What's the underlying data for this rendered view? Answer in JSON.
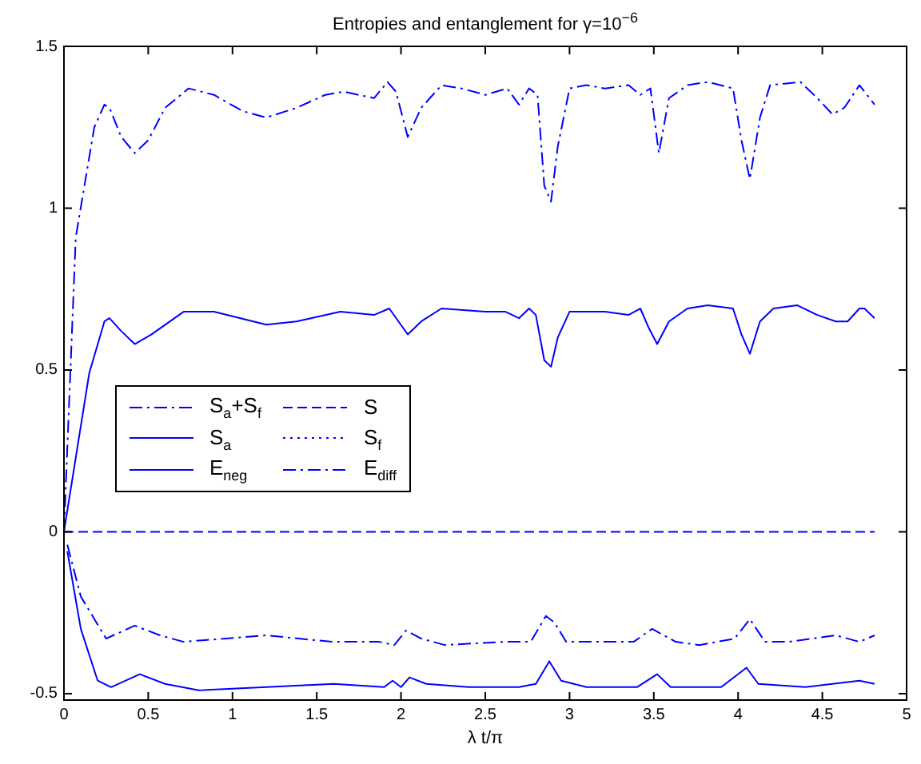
{
  "chart_data": {
    "type": "line",
    "title": "Entropies and entanglement for γ=10$^{−6}$",
    "xlabel": "λ t/π",
    "xlim": [
      0,
      5
    ],
    "xticks": [
      0,
      0.5,
      1,
      1.5,
      2,
      2.5,
      3,
      3.5,
      4,
      4.5,
      5
    ],
    "ylim": [
      -0.52,
      1.5
    ],
    "yticks": [
      -0.5,
      0,
      0.5,
      1,
      1.5
    ],
    "grid": false,
    "legend": "left",
    "marker": "none",
    "series": [
      {
        "name": "S$_{a}$+S$_{f}$",
        "color": "#0000ff",
        "line_style": "dashdot",
        "x": [
          0,
          0.07,
          0.18,
          0.24,
          0.27,
          0.34,
          0.42,
          0.5,
          0.6,
          0.74,
          0.89,
          1.06,
          1.2,
          1.38,
          1.55,
          1.66,
          1.84,
          1.92,
          1.97,
          2.04,
          2.12,
          2.24,
          2.36,
          2.5,
          2.63,
          2.7,
          2.76,
          2.81,
          2.85,
          2.89,
          2.93,
          3.0,
          3.1,
          3.21,
          3.35,
          3.42,
          3.48,
          3.53,
          3.59,
          3.7,
          3.82,
          3.97,
          4.02,
          4.07,
          4.13,
          4.19,
          4.37,
          4.47,
          4.56,
          4.63,
          4.72,
          4.81
        ],
        "values": [
          0,
          0.91,
          1.25,
          1.32,
          1.31,
          1.22,
          1.17,
          1.21,
          1.31,
          1.37,
          1.35,
          1.3,
          1.28,
          1.31,
          1.35,
          1.36,
          1.34,
          1.39,
          1.36,
          1.22,
          1.31,
          1.38,
          1.37,
          1.35,
          1.37,
          1.32,
          1.37,
          1.35,
          1.07,
          1.02,
          1.19,
          1.37,
          1.38,
          1.37,
          1.38,
          1.35,
          1.37,
          1.17,
          1.34,
          1.38,
          1.39,
          1.37,
          1.21,
          1.09,
          1.28,
          1.38,
          1.39,
          1.34,
          1.29,
          1.31,
          1.38,
          1.32
        ]
      },
      {
        "name": "S",
        "color": "#0000ff",
        "line_style": "dashed",
        "x": [
          0,
          4.81
        ],
        "values": [
          0,
          0
        ]
      },
      {
        "name": "S$_{a}$",
        "color": "#0000ff",
        "line_style": "solid",
        "x": [
          0,
          0.15,
          0.24,
          0.27,
          0.34,
          0.42,
          0.52,
          0.71,
          0.89,
          1.2,
          1.38,
          1.64,
          1.84,
          1.93,
          2.04,
          2.12,
          2.24,
          2.5,
          2.62,
          2.7,
          2.76,
          2.8,
          2.85,
          2.89,
          2.93,
          3.0,
          3.21,
          3.35,
          3.42,
          3.47,
          3.52,
          3.59,
          3.7,
          3.82,
          3.97,
          4.02,
          4.07,
          4.13,
          4.21,
          4.35,
          4.47,
          4.58,
          4.65,
          4.72,
          4.75,
          4.81
        ],
        "values": [
          0,
          0.49,
          0.65,
          0.66,
          0.62,
          0.58,
          0.61,
          0.68,
          0.68,
          0.64,
          0.65,
          0.68,
          0.67,
          0.69,
          0.61,
          0.65,
          0.69,
          0.68,
          0.68,
          0.66,
          0.69,
          0.67,
          0.53,
          0.51,
          0.6,
          0.68,
          0.68,
          0.67,
          0.69,
          0.63,
          0.58,
          0.65,
          0.69,
          0.7,
          0.69,
          0.61,
          0.55,
          0.65,
          0.69,
          0.7,
          0.67,
          0.65,
          0.65,
          0.69,
          0.69,
          0.66
        ]
      },
      {
        "name": "S$_{f}$",
        "color": "#0000ff",
        "line_style": "dotted"
      },
      {
        "name": "E$_{neg}$",
        "color": "#0000ff",
        "line_style": "solid",
        "x": [
          0.02,
          0.1,
          0.2,
          0.28,
          0.45,
          0.6,
          0.8,
          1.2,
          1.6,
          1.9,
          1.95,
          2.0,
          2.05,
          2.15,
          2.4,
          2.7,
          2.8,
          2.88,
          2.95,
          3.1,
          3.4,
          3.52,
          3.6,
          3.9,
          4.05,
          4.12,
          4.4,
          4.72,
          4.81
        ],
        "values": [
          -0.06,
          -0.3,
          -0.46,
          -0.48,
          -0.44,
          -0.47,
          -0.49,
          -0.48,
          -0.47,
          -0.48,
          -0.46,
          -0.48,
          -0.45,
          -0.47,
          -0.48,
          -0.48,
          -0.47,
          -0.4,
          -0.46,
          -0.48,
          -0.48,
          -0.44,
          -0.48,
          -0.48,
          -0.42,
          -0.47,
          -0.48,
          -0.46,
          -0.47
        ]
      },
      {
        "name": "E$_{diff}$",
        "color": "#0000ff",
        "line_style": "dashdot",
        "x": [
          0.02,
          0.1,
          0.25,
          0.42,
          0.57,
          0.71,
          1.2,
          1.59,
          1.87,
          1.96,
          2.03,
          2.12,
          2.26,
          2.61,
          2.77,
          2.86,
          2.91,
          2.98,
          3.38,
          3.49,
          3.63,
          3.77,
          3.98,
          4.07,
          4.16,
          4.3,
          4.58,
          4.72,
          4.81
        ],
        "values": [
          -0.04,
          -0.2,
          -0.33,
          -0.29,
          -0.32,
          -0.34,
          -0.32,
          -0.34,
          -0.34,
          -0.35,
          -0.305,
          -0.33,
          -0.35,
          -0.34,
          -0.34,
          -0.26,
          -0.28,
          -0.34,
          -0.34,
          -0.3,
          -0.34,
          -0.35,
          -0.33,
          -0.27,
          -0.34,
          -0.34,
          -0.32,
          -0.34,
          -0.32
        ]
      }
    ]
  }
}
